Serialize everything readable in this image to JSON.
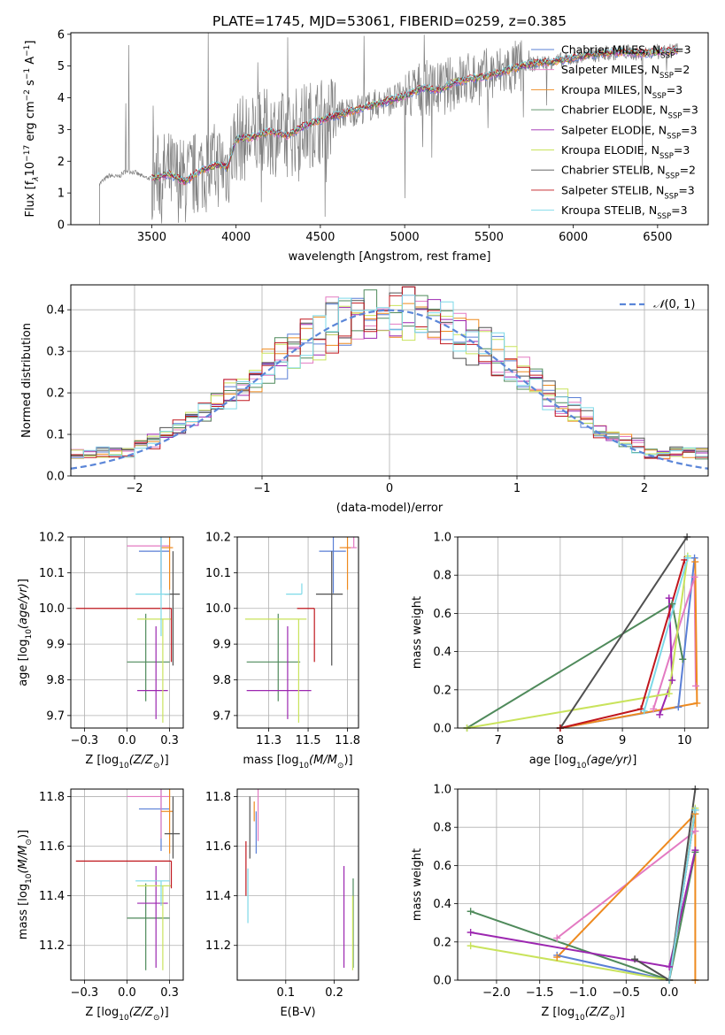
{
  "title": "PLATE=1745, MJD=53061, FIBERID=0259, z=0.385",
  "colors": {
    "c0": "#5a7fd6",
    "c1": "#e37ac2",
    "c2": "#ee8a1f",
    "c3": "#4f8a5b",
    "c4": "#9c27b0",
    "c5": "#c9e35c",
    "c6": "#505050",
    "c7": "#c0171e",
    "c8": "#7dd9e8",
    "gauss": "#5b86d8"
  },
  "models": [
    {
      "label": "Chabrier MILES, N",
      "n": "=3",
      "color": "c0"
    },
    {
      "label": "Salpeter MILES, N",
      "n": "=2",
      "color": "c1"
    },
    {
      "label": "Kroupa MILES, N",
      "n": "=3",
      "color": "c2"
    },
    {
      "label": "Chabrier ELODIE, N",
      "n": "=3",
      "color": "c3"
    },
    {
      "label": "Salpeter ELODIE, N",
      "n": "=3",
      "color": "c4"
    },
    {
      "label": "Kroupa ELODIE, N",
      "n": "=3",
      "color": "c5"
    },
    {
      "label": "Chabrier STELIB, N",
      "n": "=2",
      "color": "c6"
    },
    {
      "label": "Salpeter STELIB, N",
      "n": "=3",
      "color": "c7"
    },
    {
      "label": "Kroupa STELIB, N",
      "n": "=3",
      "color": "c8"
    }
  ],
  "ssp_sub": "SSP",
  "chart_data": [
    {
      "id": "spectrum",
      "type": "line",
      "xlabel": "wavelength [Angstrom, rest frame]",
      "ylabel": "Flux [f",
      "ylabel_tail": "10",
      "ylabel_unit": " erg cm",
      "xlim": [
        3020,
        6800
      ],
      "ylim": [
        0,
        6.05
      ],
      "xticks": [
        3500,
        4000,
        4500,
        5000,
        5500,
        6000,
        6500
      ],
      "yticks": [
        0,
        1,
        2,
        3,
        4,
        5,
        6
      ],
      "continuum": [
        [
          3190,
          1.3
        ],
        [
          3250,
          1.55
        ],
        [
          3300,
          1.5
        ],
        [
          3350,
          1.7
        ],
        [
          3400,
          1.65
        ],
        [
          3450,
          1.5
        ],
        [
          3500,
          1.45
        ],
        [
          3600,
          1.6
        ],
        [
          3700,
          1.35
        ],
        [
          3800,
          1.75
        ],
        [
          3900,
          1.9
        ],
        [
          3950,
          1.8
        ],
        [
          4000,
          2.7
        ],
        [
          4100,
          2.75
        ],
        [
          4200,
          2.95
        ],
        [
          4300,
          2.8
        ],
        [
          4400,
          3.1
        ],
        [
          4500,
          3.3
        ],
        [
          4600,
          3.45
        ],
        [
          4700,
          3.6
        ],
        [
          4800,
          3.75
        ],
        [
          4900,
          3.9
        ],
        [
          5000,
          4.05
        ],
        [
          5100,
          4.3
        ],
        [
          5200,
          4.25
        ],
        [
          5300,
          4.5
        ],
        [
          5400,
          4.6
        ],
        [
          5500,
          4.7
        ],
        [
          5600,
          4.85
        ],
        [
          5700,
          5.0
        ],
        [
          5800,
          5.1
        ],
        [
          5900,
          5.15
        ],
        [
          6000,
          5.25
        ],
        [
          6100,
          5.35
        ],
        [
          6200,
          5.4
        ],
        [
          6300,
          5.45
        ],
        [
          6400,
          5.4
        ],
        [
          6500,
          5.45
        ],
        [
          6600,
          5.5
        ]
      ],
      "data_start": 3190,
      "data_end": 6620,
      "model_start": 3500
    },
    {
      "id": "residuals",
      "type": "step",
      "xlabel": "(data-model)/error",
      "ylabel": "Normed distribution",
      "xlim": [
        -2.5,
        2.5
      ],
      "ylim": [
        0,
        0.46
      ],
      "xticks": [
        -2,
        -1,
        0,
        1,
        2
      ],
      "yticks": [
        0.0,
        0.1,
        0.2,
        0.3,
        0.4
      ],
      "gauss_label": "(0, 1)",
      "bin_width": 0.1
    },
    {
      "id": "age_Z",
      "type": "errorbar",
      "xlabel": "Z [log",
      "ylabel": "age  [log",
      "xlim": [
        -0.33,
        0.33
      ],
      "ylim": [
        9.665,
        10.2
      ],
      "xticks": [
        -0.25,
        0.0,
        0.25
      ],
      "yticks": [
        9.7,
        9.8,
        9.9,
        10.0,
        10.1,
        10.2
      ],
      "points": [
        {
          "c": "c0",
          "x": 0.2,
          "xerr": [
            0.13,
            0.05
          ],
          "y": 10.16,
          "yerr": [
            0.0,
            0.0
          ]
        },
        {
          "c": "c1",
          "x": 0.2,
          "xerr": [
            0.2,
            0.05
          ],
          "y": 10.175,
          "yerr": [
            0.0,
            0.0
          ]
        },
        {
          "c": "c2",
          "x": 0.25,
          "xerr": [
            0.05,
            0.02
          ],
          "y": 10.17,
          "yerr": [
            0.0,
            0.0
          ]
        },
        {
          "c": "c3",
          "x": 0.11,
          "xerr": [
            0.11,
            0.14
          ],
          "y": 9.85,
          "yerr": [
            0.11,
            0.135
          ]
        },
        {
          "c": "c4",
          "x": 0.17,
          "xerr": [
            0.11,
            0.07
          ],
          "y": 9.77,
          "yerr": [
            0.08,
            0.18
          ]
        },
        {
          "c": "c5",
          "x": 0.21,
          "xerr": [
            0.15,
            0.05
          ],
          "y": 9.97,
          "yerr": [
            0.29,
            0.0
          ]
        },
        {
          "c": "c6",
          "x": 0.27,
          "xerr": [
            0.05,
            0.04
          ],
          "y": 10.04,
          "yerr": [
            0.2,
            0.12
          ]
        },
        {
          "c": "c7",
          "x": 0.26,
          "xerr": [
            0.56,
            0.0
          ],
          "y": 10.0,
          "yerr": [
            0.15,
            0.0
          ]
        },
        {
          "c": "c8",
          "x": 0.2,
          "xerr": [
            0.15,
            0.05
          ],
          "y": 10.04,
          "yerr": [
            0.0,
            0.0
          ]
        }
      ]
    },
    {
      "id": "age_mass",
      "type": "errorbar",
      "xlabel": "mass [log",
      "ylabel": "",
      "xlim": [
        11.05,
        11.82
      ],
      "ylim": [
        9.665,
        10.2
      ],
      "xticks": [
        11.25,
        11.5,
        11.75
      ],
      "yticks": [
        9.7,
        9.8,
        9.9,
        10.0,
        10.1,
        10.2
      ],
      "points": [
        {
          "c": "c0",
          "x": 11.66,
          "xerr": [
            0.09,
            0.08
          ],
          "y": 10.16,
          "yerr": [
            0.0,
            0.0
          ]
        },
        {
          "c": "c1",
          "x": 11.79,
          "xerr": [
            0.05,
            0.02
          ],
          "y": 10.17,
          "yerr": [
            0.0,
            0.03
          ]
        },
        {
          "c": "c2",
          "x": 11.75,
          "xerr": [
            0.05,
            0.02
          ],
          "y": 10.17,
          "yerr": [
            0.0,
            0.0
          ]
        },
        {
          "c": "c3",
          "x": 11.31,
          "xerr": [
            0.2,
            0.14
          ],
          "y": 9.85,
          "yerr": [
            0.11,
            0.135
          ]
        },
        {
          "c": "c4",
          "x": 11.37,
          "xerr": [
            0.26,
            0.15
          ],
          "y": 9.77,
          "yerr": [
            0.08,
            0.18
          ]
        },
        {
          "c": "c5",
          "x": 11.44,
          "xerr": [
            0.34,
            0.05
          ],
          "y": 9.97,
          "yerr": [
            0.29,
            0.0
          ]
        },
        {
          "c": "c6",
          "x": 11.65,
          "xerr": [
            0.1,
            0.07
          ],
          "y": 10.04,
          "yerr": [
            0.2,
            0.12
          ]
        },
        {
          "c": "c7",
          "x": 11.54,
          "xerr": [
            0.11,
            0.0
          ],
          "y": 10.0,
          "yerr": [
            0.15,
            0.0
          ]
        },
        {
          "c": "c8",
          "x": 11.46,
          "xerr": [
            0.1,
            0.0
          ],
          "y": 10.04,
          "yerr": [
            0.0,
            0.03
          ]
        }
      ]
    },
    {
      "id": "weight_age",
      "type": "line",
      "xlabel": "age  [log",
      "ylabel": "mass weight",
      "xlim": [
        6.35,
        10.38
      ],
      "ylim": [
        0,
        1
      ],
      "xticks": [
        7,
        8,
        9,
        10
      ],
      "yticks": [
        0.0,
        0.2,
        0.4,
        0.6,
        0.8,
        1.0
      ],
      "series": [
        {
          "c": "c0",
          "pts": [
            [
              8.0,
              0.0
            ],
            [
              9.9,
              0.11
            ],
            [
              10.16,
              0.89
            ]
          ]
        },
        {
          "c": "c1",
          "pts": [
            [
              9.5,
              0.1
            ],
            [
              10.16,
              0.79
            ],
            [
              10.18,
              0.22
            ]
          ]
        },
        {
          "c": "c2",
          "pts": [
            [
              8.0,
              0.0
            ],
            [
              10.2,
              0.13
            ],
            [
              10.17,
              0.87
            ]
          ]
        },
        {
          "c": "c3",
          "pts": [
            [
              6.5,
              0.0
            ],
            [
              9.8,
              0.65
            ],
            [
              9.97,
              0.36
            ]
          ]
        },
        {
          "c": "c4",
          "pts": [
            [
              9.6,
              0.07
            ],
            [
              9.8,
              0.25
            ],
            [
              9.75,
              0.68
            ]
          ]
        },
        {
          "c": "c5",
          "pts": [
            [
              6.5,
              0.0
            ],
            [
              9.75,
              0.18
            ],
            [
              10.05,
              0.9
            ]
          ]
        },
        {
          "c": "c6",
          "pts": [
            [
              8.0,
              0.0
            ],
            [
              10.04,
              1.0
            ]
          ]
        },
        {
          "c": "c7",
          "pts": [
            [
              8.0,
              0.0
            ],
            [
              9.3,
              0.1
            ],
            [
              10.0,
              0.88
            ]
          ]
        },
        {
          "c": "c8",
          "pts": [
            [
              9.35,
              0.09
            ],
            [
              10.05,
              0.89
            ]
          ]
        }
      ]
    },
    {
      "id": "mass_Z",
      "type": "errorbar",
      "xlabel": "Z [log",
      "ylabel": "mass [log",
      "xlim": [
        -0.33,
        0.33
      ],
      "ylim": [
        11.06,
        11.83
      ],
      "xticks": [
        -0.25,
        0.0,
        0.25
      ],
      "yticks": [
        11.2,
        11.4,
        11.6,
        11.8
      ],
      "points": [
        {
          "c": "c0",
          "x": 0.2,
          "xerr": [
            0.13,
            0.05
          ],
          "y": 11.75,
          "yerr": [
            0.0,
            0.0
          ]
        },
        {
          "c": "c1",
          "x": 0.2,
          "xerr": [
            0.2,
            0.05
          ],
          "y": 11.8,
          "yerr": [
            0.0,
            0.0
          ]
        },
        {
          "c": "c2",
          "x": 0.25,
          "xerr": [
            0.05,
            0.02
          ],
          "y": 11.74,
          "yerr": [
            0.0,
            0.0
          ]
        },
        {
          "c": "c3",
          "x": 0.11,
          "xerr": [
            0.11,
            0.14
          ],
          "y": 11.31,
          "yerr": [
            0.21,
            0.14
          ]
        },
        {
          "c": "c4",
          "x": 0.17,
          "xerr": [
            0.11,
            0.07
          ],
          "y": 11.37,
          "yerr": [
            0.26,
            0.15
          ]
        },
        {
          "c": "c5",
          "x": 0.21,
          "xerr": [
            0.15,
            0.05
          ],
          "y": 11.44,
          "yerr": [
            0.34,
            0.0
          ]
        },
        {
          "c": "c6",
          "x": 0.27,
          "xerr": [
            0.05,
            0.04
          ],
          "y": 11.65,
          "yerr": [
            0.1,
            0.15
          ]
        },
        {
          "c": "c7",
          "x": 0.26,
          "xerr": [
            0.56,
            0.0
          ],
          "y": 11.54,
          "yerr": [
            0.11,
            0.0
          ]
        },
        {
          "c": "c8",
          "x": 0.2,
          "xerr": [
            0.15,
            0.05
          ],
          "y": 11.46,
          "yerr": [
            0.1,
            0.0
          ]
        }
      ]
    },
    {
      "id": "mass_ebv",
      "type": "errorbar",
      "xlabel": "E(B-V)",
      "ylabel": "",
      "xlim": [
        0.0,
        0.25
      ],
      "ylim": [
        11.06,
        11.83
      ],
      "xticks": [
        0.1,
        0.2
      ],
      "yticks": [
        11.2,
        11.4,
        11.6,
        11.8
      ],
      "points": [
        {
          "c": "c0",
          "x": 0.039,
          "xerr": [
            0,
            0
          ],
          "y": 11.66,
          "yerr": [
            0.09,
            0.08
          ]
        },
        {
          "c": "c1",
          "x": 0.043,
          "xerr": [
            0,
            0
          ],
          "y": 11.79,
          "yerr": [
            0.0,
            0.0
          ]
        },
        {
          "c": "c2",
          "x": 0.035,
          "xerr": [
            0,
            0
          ],
          "y": 11.75,
          "yerr": [
            0.05,
            0.03
          ]
        },
        {
          "c": "c3",
          "x": 0.239,
          "xerr": [
            0,
            0
          ],
          "y": 11.31,
          "yerr": [
            0.2,
            0.16
          ]
        },
        {
          "c": "c4",
          "x": 0.22,
          "xerr": [
            0,
            0
          ],
          "y": 11.37,
          "yerr": [
            0.26,
            0.15
          ]
        },
        {
          "c": "c5",
          "x": 0.238,
          "xerr": [
            0,
            0
          ],
          "y": 11.3,
          "yerr": [
            0.2,
            0.1
          ]
        },
        {
          "c": "c6",
          "x": 0.026,
          "xerr": [
            0,
            0
          ],
          "y": 11.65,
          "yerr": [
            0.1,
            0.15
          ]
        },
        {
          "c": "c7",
          "x": 0.018,
          "xerr": [
            0,
            0
          ],
          "y": 11.51,
          "yerr": [
            0.11,
            0.11
          ]
        },
        {
          "c": "c8",
          "x": 0.022,
          "xerr": [
            0,
            0
          ],
          "y": 11.4,
          "yerr": [
            0.11,
            0.11
          ]
        }
      ]
    },
    {
      "id": "weight_Z",
      "type": "line",
      "xlabel": "Z [log",
      "ylabel": "mass weight",
      "xlim": [
        -2.45,
        0.45
      ],
      "ylim": [
        0,
        1
      ],
      "xticks": [
        -2.0,
        -1.5,
        -1.0,
        -0.5,
        0.0
      ],
      "yticks": [
        0.0,
        0.2,
        0.4,
        0.6,
        0.8,
        1.0
      ],
      "series": [
        {
          "c": "c0",
          "pts": [
            [
              -1.3,
              0.13
            ],
            [
              0.0,
              0.0
            ],
            [
              0.3,
              0.89
            ]
          ]
        },
        {
          "c": "c1",
          "pts": [
            [
              -1.3,
              0.22
            ],
            [
              0.3,
              0.78
            ]
          ]
        },
        {
          "c": "c2",
          "pts": [
            [
              -1.3,
              0.12
            ],
            [
              0.3,
              0.87
            ],
            [
              0.3,
              0.0
            ]
          ]
        },
        {
          "c": "c3",
          "pts": [
            [
              -2.3,
              0.36
            ],
            [
              0.0,
              0.0
            ],
            [
              0.3,
              0.67
            ]
          ]
        },
        {
          "c": "c4",
          "pts": [
            [
              -2.3,
              0.25
            ],
            [
              0.0,
              0.07
            ],
            [
              0.3,
              0.68
            ]
          ]
        },
        {
          "c": "c5",
          "pts": [
            [
              -2.3,
              0.18
            ],
            [
              0.0,
              0.0
            ],
            [
              0.3,
              0.9
            ]
          ]
        },
        {
          "c": "c6",
          "pts": [
            [
              -0.4,
              0.11
            ],
            [
              0.0,
              0.0
            ],
            [
              0.3,
              1.0
            ]
          ]
        },
        {
          "c": "c7",
          "pts": [
            [
              0.0,
              0.0
            ],
            [
              0.3,
              0.89
            ]
          ]
        },
        {
          "c": "c8",
          "pts": [
            [
              0.0,
              0.0
            ],
            [
              0.3,
              0.89
            ]
          ]
        }
      ]
    }
  ],
  "units": {
    "zsun": "(Z/Z",
    "msun": "(M/M",
    "ageyr": "(age/yr)",
    "ten": "10"
  }
}
